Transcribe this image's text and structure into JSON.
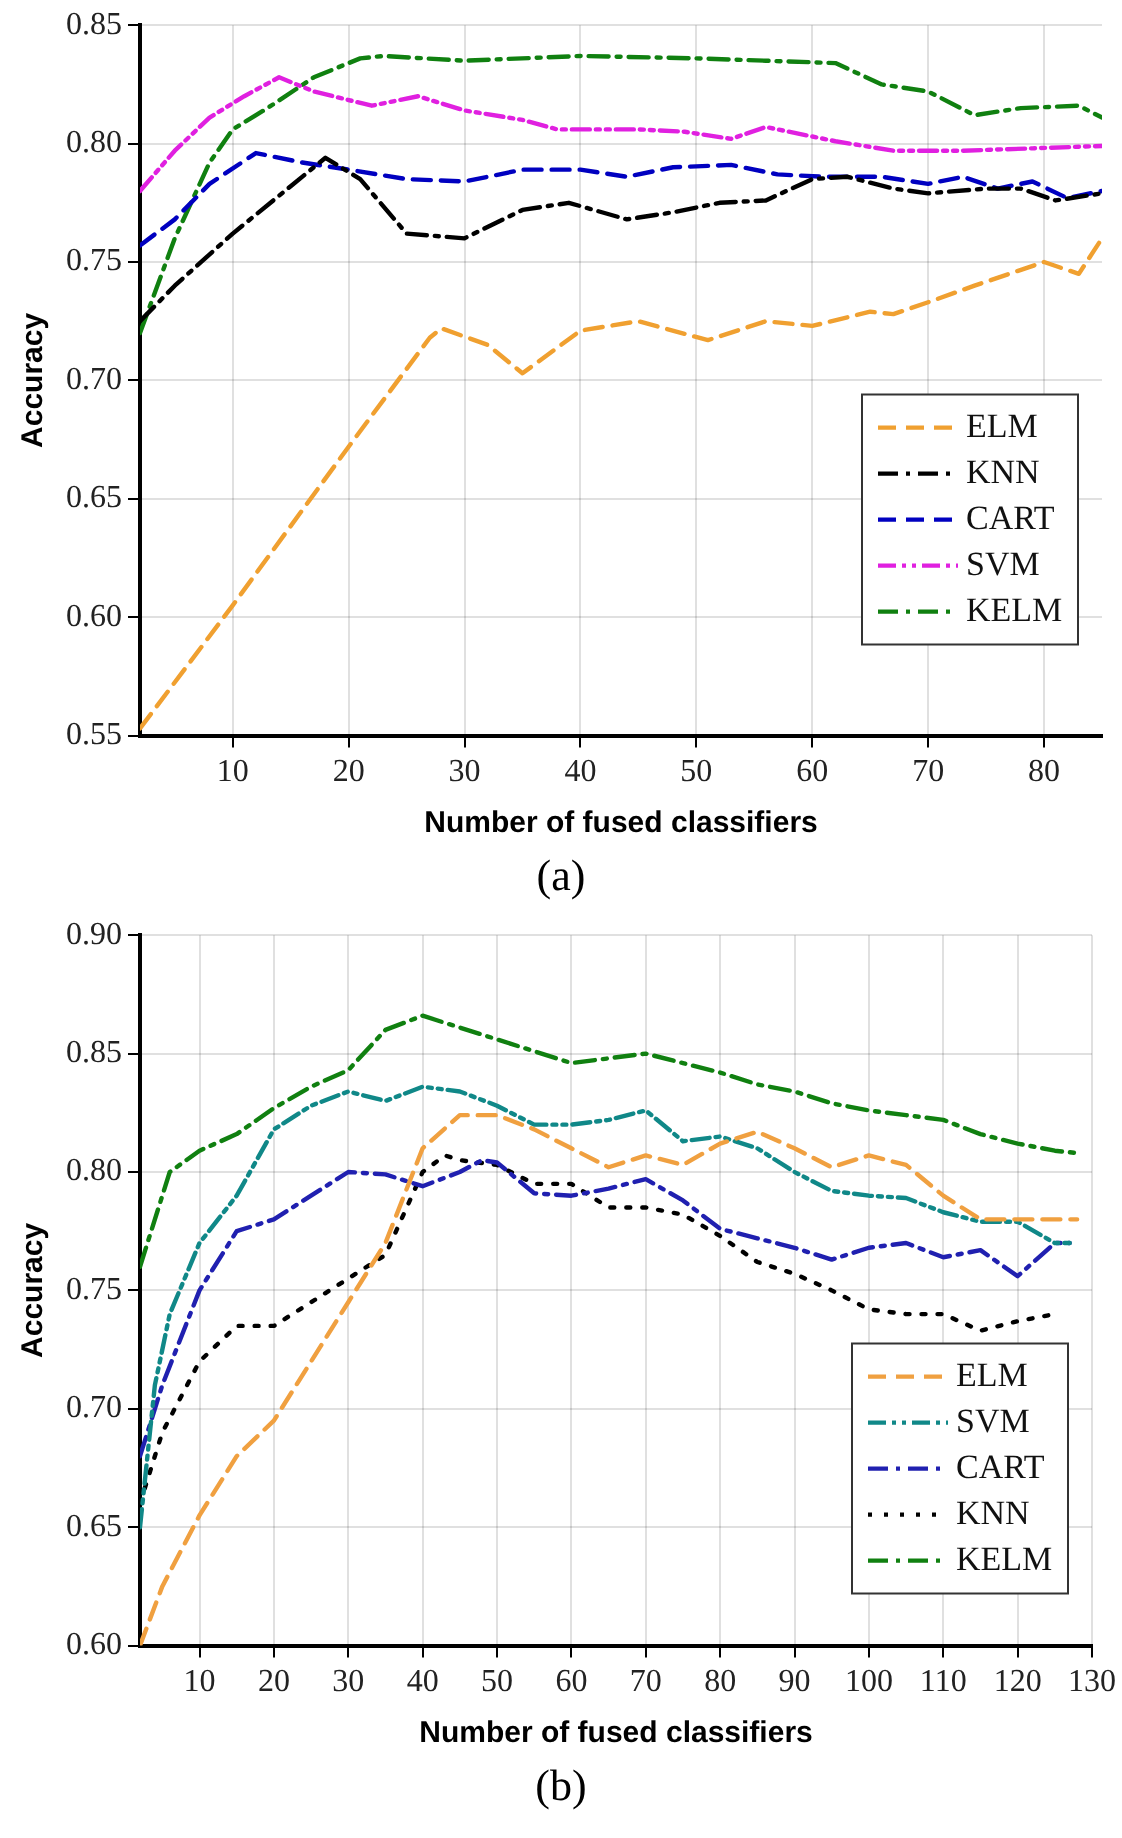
{
  "chart_data": [
    {
      "type": "line",
      "xlabel": "Number of fused classifiers",
      "ylabel": "Accuracy",
      "annotations": [
        "(a)"
      ],
      "legend": "right",
      "grid": true,
      "marker": "none",
      "xlim": [
        2,
        85
      ],
      "xticks": [
        10,
        20,
        30,
        40,
        50,
        60,
        70,
        80
      ],
      "ylim": [
        0.55,
        0.85
      ],
      "yticks": [
        0.55,
        {
          "value": 0.6,
          "label": "0.60"
        },
        0.65,
        {
          "value": 0.7,
          "label": "0.70"
        },
        0.75,
        {
          "value": 0.8,
          "label": "0.80"
        },
        0.85
      ],
      "series": [
        {
          "name": "ELM",
          "color": "#f0a030",
          "line_style": "dashed",
          "x": [
            2,
            10,
            20,
            27,
            28,
            32,
            35,
            40,
            45,
            51,
            56,
            60,
            65,
            67,
            70,
            74,
            80,
            83,
            85
          ],
          "values": [
            0.553,
            0.605,
            0.672,
            0.718,
            0.722,
            0.715,
            0.703,
            0.721,
            0.725,
            0.717,
            0.725,
            0.723,
            0.729,
            0.728,
            0.733,
            0.74,
            0.75,
            0.745,
            0.76
          ]
        },
        {
          "name": "KNN",
          "color": "#000000",
          "line_style": "dashdot",
          "x": [
            2,
            5,
            10,
            15,
            18,
            21,
            25,
            30,
            35,
            39,
            44,
            48,
            52,
            56,
            60,
            63,
            67,
            70,
            75,
            78,
            81,
            85
          ],
          "values": [
            0.725,
            0.74,
            0.762,
            0.782,
            0.794,
            0.785,
            0.762,
            0.76,
            0.772,
            0.775,
            0.768,
            0.771,
            0.775,
            0.776,
            0.785,
            0.786,
            0.781,
            0.779,
            0.781,
            0.781,
            0.776,
            0.779
          ]
        },
        {
          "name": "CART",
          "color": "#0000c0",
          "line_style": "dashed",
          "x": [
            2,
            5,
            8,
            12,
            16,
            20,
            25,
            30,
            35,
            40,
            44,
            48,
            53,
            57,
            61,
            66,
            70,
            73,
            76,
            79,
            82,
            85
          ],
          "values": [
            0.757,
            0.768,
            0.783,
            0.796,
            0.792,
            0.789,
            0.785,
            0.784,
            0.789,
            0.789,
            0.786,
            0.79,
            0.791,
            0.787,
            0.786,
            0.786,
            0.783,
            0.786,
            0.781,
            0.784,
            0.777,
            0.78
          ]
        },
        {
          "name": "SVM",
          "color": "#e020e0",
          "line_style": "dashdotdot",
          "x": [
            2,
            5,
            8,
            11,
            14,
            17,
            22,
            26,
            30,
            35,
            38,
            45,
            49,
            53,
            56,
            62,
            67,
            73,
            79,
            85
          ],
          "values": [
            0.78,
            0.797,
            0.811,
            0.82,
            0.828,
            0.822,
            0.816,
            0.82,
            0.814,
            0.81,
            0.806,
            0.806,
            0.805,
            0.802,
            0.807,
            0.801,
            0.797,
            0.797,
            0.798,
            0.799
          ]
        },
        {
          "name": "KELM",
          "color": "#108010",
          "line_style": "dashdot",
          "x": [
            2,
            5,
            8,
            10,
            13,
            17,
            21,
            23,
            30,
            40,
            50,
            56,
            62,
            66,
            70,
            74,
            78,
            83,
            85
          ],
          "values": [
            0.72,
            0.76,
            0.792,
            0.806,
            0.815,
            0.828,
            0.836,
            0.837,
            0.835,
            0.837,
            0.836,
            0.835,
            0.834,
            0.825,
            0.822,
            0.812,
            0.815,
            0.816,
            0.811
          ]
        }
      ]
    },
    {
      "type": "line",
      "xlabel": "Number of fused classifiers",
      "ylabel": "Accuracy",
      "annotations": [
        "(b)"
      ],
      "legend": "bottom right",
      "grid": true,
      "marker": "none",
      "xlim": [
        2,
        130
      ],
      "xticks": [
        10,
        20,
        30,
        40,
        50,
        60,
        70,
        80,
        90,
        100,
        110,
        120,
        130
      ],
      "ylim": [
        0.6,
        0.9
      ],
      "yticks": [
        {
          "value": 0.6,
          "label": "0.60"
        },
        0.65,
        {
          "value": 0.7,
          "label": "0.70"
        },
        0.75,
        {
          "value": 0.8,
          "label": "0.80"
        },
        0.85,
        {
          "value": 0.9,
          "label": "0.90"
        }
      ],
      "series": [
        {
          "name": "ELM",
          "color": "#f0a040",
          "line_style": "dashed",
          "x": [
            2,
            5,
            10,
            15,
            20,
            25,
            30,
            35,
            40,
            45,
            50,
            55,
            60,
            65,
            70,
            75,
            80,
            85,
            90,
            95,
            100,
            105,
            110,
            115,
            120,
            125,
            128
          ],
          "values": [
            0.6,
            0.625,
            0.655,
            0.68,
            0.695,
            0.72,
            0.745,
            0.77,
            0.81,
            0.824,
            0.824,
            0.818,
            0.81,
            0.802,
            0.807,
            0.803,
            0.812,
            0.817,
            0.81,
            0.802,
            0.807,
            0.803,
            0.79,
            0.78,
            0.78,
            0.78,
            0.78
          ]
        },
        {
          "name": "SVM",
          "color": "#108888",
          "line_style": "dashdotdot",
          "x": [
            2,
            4,
            6,
            10,
            15,
            20,
            25,
            30,
            35,
            40,
            45,
            50,
            55,
            60,
            65,
            70,
            75,
            80,
            85,
            90,
            95,
            100,
            105,
            110,
            115,
            120,
            125,
            127
          ],
          "values": [
            0.65,
            0.71,
            0.74,
            0.77,
            0.79,
            0.818,
            0.828,
            0.834,
            0.83,
            0.836,
            0.834,
            0.828,
            0.82,
            0.82,
            0.822,
            0.826,
            0.813,
            0.815,
            0.81,
            0.8,
            0.792,
            0.79,
            0.789,
            0.783,
            0.779,
            0.779,
            0.77,
            0.77
          ]
        },
        {
          "name": "CART",
          "color": "#2020b0",
          "line_style": "dashdot",
          "x": [
            2,
            5,
            10,
            15,
            20,
            25,
            30,
            35,
            40,
            45,
            48,
            50,
            55,
            60,
            65,
            70,
            75,
            80,
            85,
            90,
            95,
            100,
            105,
            110,
            115,
            120,
            125,
            127
          ],
          "values": [
            0.68,
            0.71,
            0.75,
            0.775,
            0.78,
            0.79,
            0.8,
            0.799,
            0.794,
            0.8,
            0.805,
            0.804,
            0.791,
            0.79,
            0.793,
            0.797,
            0.788,
            0.776,
            0.772,
            0.768,
            0.763,
            0.768,
            0.77,
            0.764,
            0.767,
            0.756,
            0.77,
            0.77
          ]
        },
        {
          "name": "KNN",
          "color": "#000000",
          "line_style": "dotted",
          "x": [
            2,
            5,
            10,
            15,
            20,
            25,
            30,
            35,
            40,
            43,
            45,
            50,
            55,
            60,
            65,
            70,
            75,
            80,
            85,
            90,
            95,
            100,
            105,
            110,
            115,
            120,
            125
          ],
          "values": [
            0.66,
            0.69,
            0.72,
            0.735,
            0.735,
            0.745,
            0.755,
            0.765,
            0.8,
            0.807,
            0.805,
            0.803,
            0.795,
            0.795,
            0.785,
            0.785,
            0.782,
            0.773,
            0.762,
            0.757,
            0.75,
            0.742,
            0.74,
            0.74,
            0.733,
            0.737,
            0.74
          ]
        },
        {
          "name": "KELM",
          "color": "#108010",
          "line_style": "dashdot",
          "x": [
            2,
            6,
            10,
            15,
            20,
            25,
            30,
            35,
            40,
            45,
            50,
            55,
            60,
            65,
            70,
            75,
            80,
            85,
            90,
            95,
            100,
            105,
            110,
            115,
            120,
            125,
            128
          ],
          "values": [
            0.76,
            0.8,
            0.809,
            0.816,
            0.827,
            0.836,
            0.843,
            0.86,
            0.866,
            0.861,
            0.856,
            0.851,
            0.846,
            0.848,
            0.85,
            0.846,
            0.842,
            0.837,
            0.834,
            0.829,
            0.826,
            0.824,
            0.822,
            0.816,
            0.812,
            0.809,
            0.808
          ]
        }
      ]
    }
  ]
}
